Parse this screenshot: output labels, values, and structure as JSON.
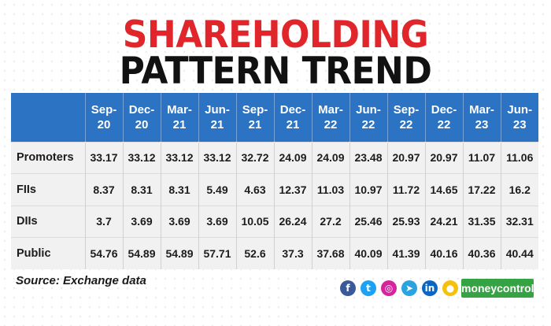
{
  "title_line1": "SHAREHOLDING",
  "title_line2": "PATTERN TREND",
  "source": "Source: Exchange data",
  "brand": "moneycontrol",
  "colors": {
    "title_red": "#e0262b",
    "header_blue": "#2d73c4",
    "table_bg": "#f1f1f1",
    "brand_green": "#35a343"
  },
  "social_icons": [
    {
      "name": "facebook-icon",
      "glyph": "f",
      "color": "#3b5998"
    },
    {
      "name": "twitter-icon",
      "glyph": "t",
      "color": "#1da1f2"
    },
    {
      "name": "instagram-icon",
      "glyph": "◎",
      "color": "#d6249f"
    },
    {
      "name": "telegram-icon",
      "glyph": "➤",
      "color": "#2aa3df"
    },
    {
      "name": "linkedin-icon",
      "glyph": "in",
      "color": "#0a66c2"
    },
    {
      "name": "koo-icon",
      "glyph": "●",
      "color": "#f4c20d"
    }
  ],
  "chart_data": {
    "type": "table",
    "columns": [
      [
        "Sep-",
        "20"
      ],
      [
        "Dec-",
        "20"
      ],
      [
        "Mar-",
        "21"
      ],
      [
        "Jun-",
        "21"
      ],
      [
        "Sep-",
        "21"
      ],
      [
        "Dec-",
        "21"
      ],
      [
        "Mar-",
        "22"
      ],
      [
        "Jun-",
        "22"
      ],
      [
        "Sep-",
        "22"
      ],
      [
        "Dec-",
        "22"
      ],
      [
        "Mar-",
        "23"
      ],
      [
        "Jun-",
        "23"
      ]
    ],
    "rows": [
      {
        "label": "Promoters",
        "values": [
          "33.17",
          "33.12",
          "33.12",
          "33.12",
          "32.72",
          "24.09",
          "24.09",
          "23.48",
          "20.97",
          "20.97",
          "11.07",
          "11.06"
        ]
      },
      {
        "label": "FIIs",
        "values": [
          "8.37",
          "8.31",
          "8.31",
          "5.49",
          "4.63",
          "12.37",
          "11.03",
          "10.97",
          "11.72",
          "14.65",
          "17.22",
          "16.2"
        ]
      },
      {
        "label": "DIIs",
        "values": [
          "3.7",
          "3.69",
          "3.69",
          "3.69",
          "10.05",
          "26.24",
          "27.2",
          "25.46",
          "25.93",
          "24.21",
          "31.35",
          "32.31"
        ]
      },
      {
        "label": "Public",
        "values": [
          "54.76",
          "54.89",
          "54.89",
          "57.71",
          "52.6",
          "37.3",
          "37.68",
          "40.09",
          "41.39",
          "40.16",
          "40.36",
          "40.44"
        ]
      }
    ]
  }
}
